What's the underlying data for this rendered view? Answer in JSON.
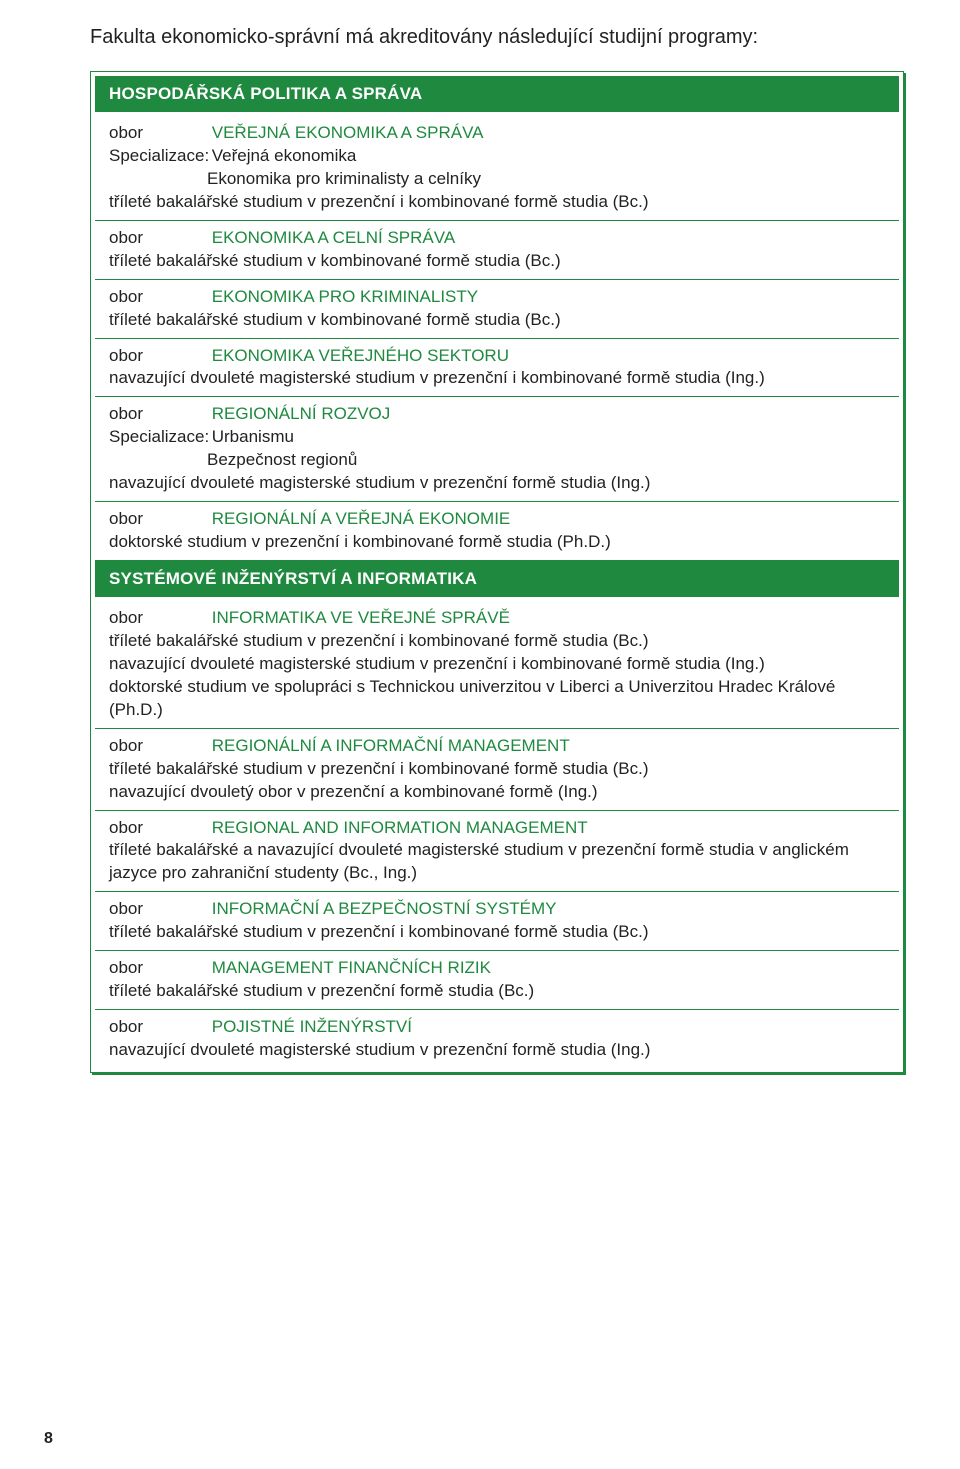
{
  "intro": "Fakulta ekonomicko-správní má akreditovány následující studijní programy:",
  "sections": [
    {
      "title": "HOSPODÁŘSKÁ POLITIKA A SPRÁVA",
      "entries": [
        {
          "obor_label": "obor",
          "obor": "VEŘEJNÁ EKONOMIKA A SPRÁVA",
          "spec_label": "Specializace:",
          "spec1": "Veřejná ekonomika",
          "spec2": "Ekonomika pro kriminalisty a celníky",
          "desc1": "tříleté bakalářské studium v prezenční i kombinované formě studia (Bc.)"
        },
        {
          "obor_label": "obor",
          "obor": "EKONOMIKA A CELNÍ SPRÁVA",
          "desc1": "tříleté bakalářské studium v kombinované formě studia (Bc.)"
        },
        {
          "obor_label": "obor",
          "obor": "EKONOMIKA PRO KRIMINALISTY",
          "desc1": "tříleté bakalářské studium v kombinované formě studia (Bc.)"
        },
        {
          "obor_label": "obor",
          "obor": "EKONOMIKA VEŘEJNÉHO SEKTORU",
          "desc1": "navazující dvouleté magisterské studium v prezenční i kombinované formě studia (Ing.)"
        },
        {
          "obor_label": "obor",
          "obor": "REGIONÁLNÍ ROZVOJ",
          "spec_label": "Specializace:",
          "spec1": "Urbanismu",
          "spec2": "Bezpečnost regionů",
          "desc1": "navazující dvouleté magisterské studium v prezenční formě studia (Ing.)"
        },
        {
          "obor_label": "obor",
          "obor": "REGIONÁLNÍ A VEŘEJNÁ EKONOMIE",
          "desc1": "doktorské studium v prezenční i kombinované formě studia (Ph.D.)"
        }
      ]
    },
    {
      "title": "SYSTÉMOVÉ INŽENÝRSTVÍ A INFORMATIKA",
      "entries": [
        {
          "obor_label": "obor",
          "obor": "INFORMATIKA VE VEŘEJNÉ SPRÁVĚ",
          "desc1": "tříleté bakalářské studium v prezenční i kombinované formě studia (Bc.)",
          "desc2": "navazující dvouleté magisterské studium v prezenční i kombinované formě studia (Ing.)",
          "desc3": "doktorské studium ve spolupráci s Technickou univerzitou v Liberci a Univerzitou Hradec Králové (Ph.D.)"
        },
        {
          "obor_label": "obor",
          "obor": "REGIONÁLNÍ A INFORMAČNÍ MANAGEMENT",
          "desc1": "tříleté bakalářské studium v prezenční i kombinované formě studia (Bc.)",
          "desc2": "navazující dvouletý obor v prezenční a kombinované formě (Ing.)"
        },
        {
          "obor_label": "obor",
          "obor": "REGIONAL AND INFORMATION MANAGEMENT",
          "desc1": "tříleté bakalářské a navazující dvouleté magisterské studium v prezenční formě studia v anglickém jazyce pro zahraniční studenty (Bc., Ing.)"
        },
        {
          "obor_label": "obor",
          "obor": "INFORMAČNÍ A BEZPEČNOSTNÍ SYSTÉMY",
          "desc1": "tříleté bakalářské studium v prezenční i kombinované formě studia (Bc.)"
        },
        {
          "obor_label": "obor",
          "obor": "MANAGEMENT FINANČNÍCH RIZIK",
          "desc1": "tříleté bakalářské studium v prezenční formě studia (Bc.)"
        },
        {
          "obor_label": "obor",
          "obor": "POJISTNÉ INŽENÝRSTVÍ",
          "desc1": "navazující dvouleté magisterské studium v prezenční formě studia (Ing.)"
        }
      ]
    }
  ],
  "page_number": "8",
  "colors": {
    "accent": "#1f8a3f",
    "text": "#222222",
    "bg": "#ffffff"
  }
}
